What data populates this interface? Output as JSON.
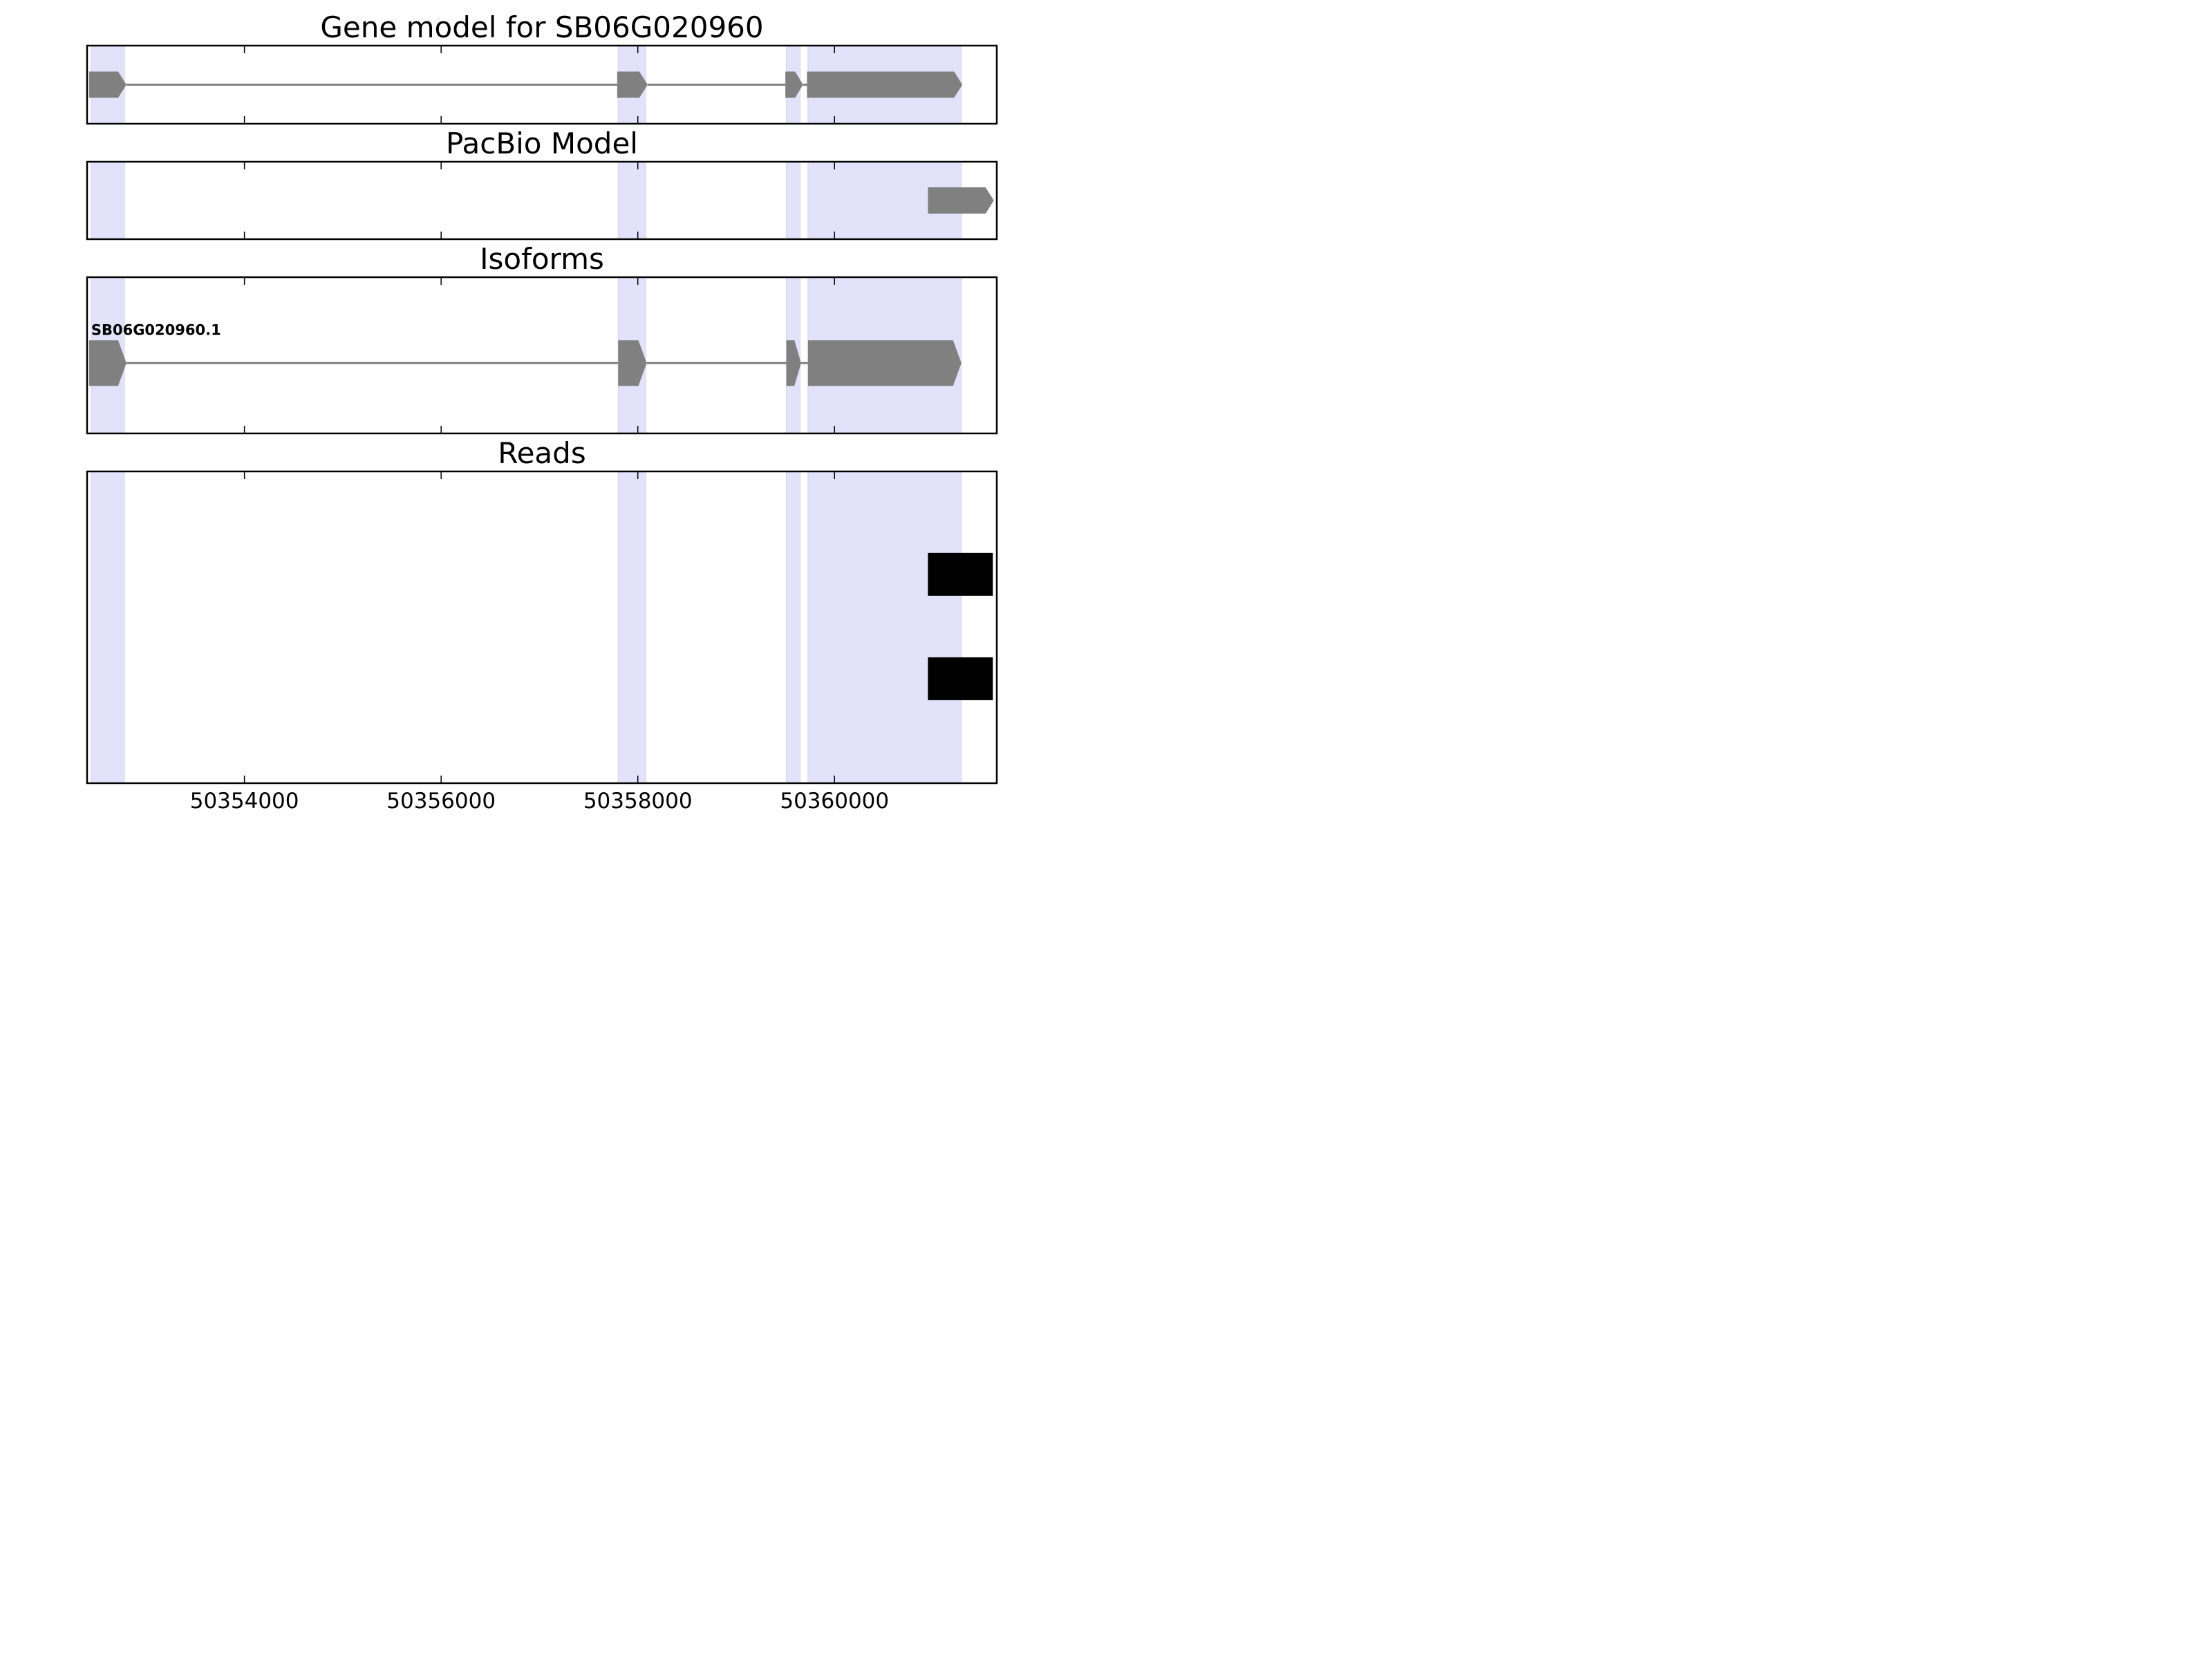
{
  "chart_data": {
    "type": "gene_track",
    "title": "Gene model for SB06G020960",
    "x_ticks": [
      50354000,
      50356000,
      50358000,
      50360000
    ],
    "x_tick_labels": [
      "50354000",
      "50356000",
      "50358000",
      "50360000"
    ],
    "xlim": [
      50352400,
      50361650
    ],
    "highlight_regions": [
      [
        50352440,
        50352780
      ],
      [
        50357800,
        50358080
      ],
      [
        50359510,
        50359650
      ],
      [
        50359730,
        50361290
      ]
    ],
    "panels": [
      {
        "id": "gene-model",
        "title": "Gene model for SB06G020960",
        "features": [
          {
            "label": "",
            "show_label": false,
            "exons": [
              [
                50352420,
                50352800
              ],
              [
                50357790,
                50358100
              ],
              [
                50359500,
                50359680
              ],
              [
                50359720,
                50361300
              ]
            ],
            "color": "#808080"
          }
        ]
      },
      {
        "id": "pacbio-model",
        "title": "PacBio Model",
        "features": [
          {
            "label": "",
            "show_label": false,
            "exons": [
              [
                50360950,
                50361620
              ]
            ],
            "color": "#808080"
          }
        ]
      },
      {
        "id": "isoforms",
        "title": "Isoforms",
        "features": [
          {
            "label": "SB06G020960.1",
            "show_label": true,
            "exons": [
              [
                50352420,
                50352800
              ],
              [
                50357800,
                50358090
              ],
              [
                50359510,
                50359660
              ],
              [
                50359730,
                50361290
              ]
            ],
            "color": "#808080"
          }
        ]
      },
      {
        "id": "reads",
        "title": "Reads",
        "features": [
          {
            "label": "",
            "show_label": false,
            "exons": [
              [
                50360950,
                50361610
              ]
            ],
            "color": "#000000"
          },
          {
            "label": "",
            "show_label": false,
            "exons": [
              [
                50360950,
                50361610
              ]
            ],
            "color": "#000000"
          }
        ]
      }
    ],
    "colors": {
      "highlight": "#e2e2fb",
      "feature": "#808080",
      "read": "#000000",
      "intron": "#808080"
    }
  }
}
